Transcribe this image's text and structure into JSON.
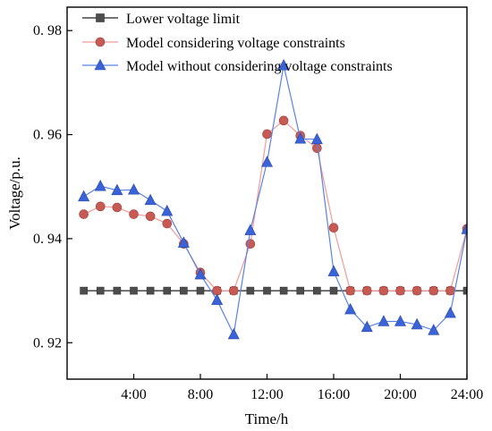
{
  "chart_data": {
    "type": "line",
    "xlabel": "Time/h",
    "ylabel": "Voltage/p.u.",
    "xlim": [
      0,
      24
    ],
    "ylim": [
      0.913,
      0.9845
    ],
    "x_ticks": [
      4,
      8,
      12,
      16,
      20,
      24
    ],
    "x_tick_labels": [
      "4:00",
      "8:00",
      "12:00",
      "16:00",
      "20:00",
      "24:00"
    ],
    "y_ticks": [
      0.92,
      0.94,
      0.96,
      0.98
    ],
    "y_tick_labels": [
      "0. 92",
      "0. 94",
      "0. 96",
      "0. 98"
    ],
    "x": [
      1,
      2,
      3,
      4,
      5,
      6,
      7,
      8,
      9,
      10,
      11,
      12,
      13,
      14,
      15,
      16,
      17,
      18,
      19,
      20,
      21,
      22,
      23,
      24
    ],
    "grid": false,
    "legend_position": "top",
    "series": [
      {
        "name": "Lower voltage limit",
        "color": "#4d4d4d",
        "line_color": "#222222",
        "marker": "square",
        "values": [
          0.93,
          0.93,
          0.93,
          0.93,
          0.93,
          0.93,
          0.93,
          0.93,
          0.93,
          0.93,
          0.93,
          0.93,
          0.93,
          0.93,
          0.93,
          0.93,
          0.93,
          0.93,
          0.93,
          0.93,
          0.93,
          0.93,
          0.93,
          0.93
        ]
      },
      {
        "name": "Model considering voltage constraints",
        "color": "#c85a54",
        "line_color": "#f29a9a",
        "marker": "circle",
        "values": [
          0.9447,
          0.9462,
          0.946,
          0.9447,
          0.9443,
          0.9429,
          0.939,
          0.9335,
          0.93,
          0.93,
          0.939,
          0.9601,
          0.9627,
          0.9598,
          0.9574,
          0.9421,
          0.93,
          0.93,
          0.93,
          0.93,
          0.93,
          0.93,
          0.93,
          0.9419
        ]
      },
      {
        "name": "Model without considering voltage constraints",
        "color": "#3a63d8",
        "line_color": "#5a82e6",
        "marker": "triangle",
        "values": [
          0.9481,
          0.9501,
          0.9493,
          0.9494,
          0.9474,
          0.9453,
          0.9392,
          0.9331,
          0.9282,
          0.9216,
          0.9416,
          0.9547,
          0.9733,
          0.9592,
          0.9591,
          0.9337,
          0.9264,
          0.923,
          0.9241,
          0.9241,
          0.9235,
          0.9224,
          0.9257,
          0.9418
        ]
      }
    ]
  }
}
